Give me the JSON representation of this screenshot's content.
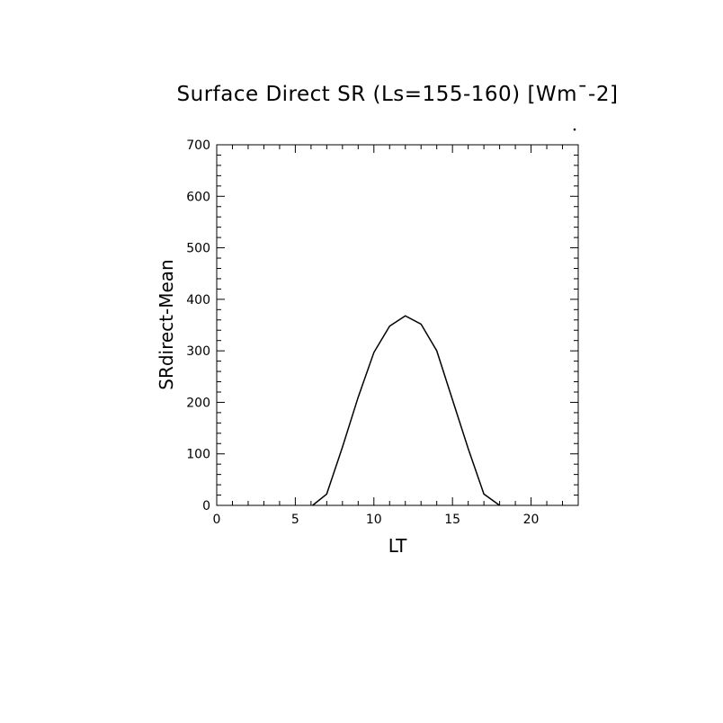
{
  "chart_data": {
    "type": "line",
    "title": "Surface Direct SR (Ls=155-160) [Wm¯-2]",
    "xlabel": "LT",
    "ylabel": "SRdirect-Mean",
    "xlim": [
      0,
      23
    ],
    "ylim": [
      0,
      700
    ],
    "x_ticks": [
      "0",
      "5",
      "10",
      "15",
      "20"
    ],
    "y_ticks": [
      "0",
      "100",
      "200",
      "300",
      "400",
      "500",
      "600",
      "700"
    ],
    "grid": false,
    "line_color": "#000000",
    "series": [
      {
        "x": [
          6.1,
          7,
          8,
          9,
          10,
          11,
          12,
          13,
          14,
          15,
          16,
          17,
          18
        ],
        "y": [
          0,
          22,
          113,
          210,
          297,
          348,
          368,
          352,
          300,
          205,
          110,
          22,
          0
        ]
      }
    ]
  }
}
